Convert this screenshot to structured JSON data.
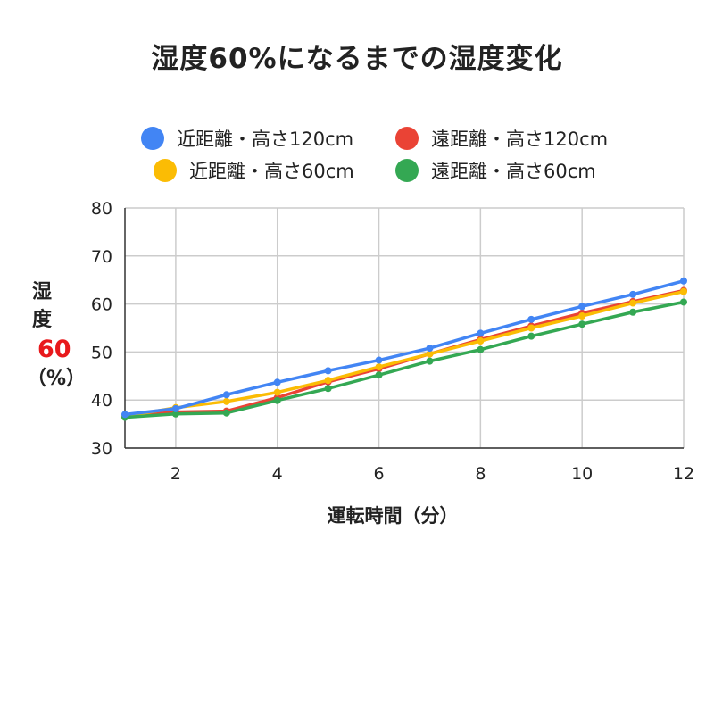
{
  "chart_data": {
    "type": "line",
    "title": "湿度60%になるまでの湿度変化",
    "xlabel": "運転時間（分）",
    "ylabel": "湿度（%）",
    "ylabel_parts": {
      "top": "湿度",
      "highlight": "60",
      "bottom": "（%）"
    },
    "highlight_color": "#e8191c",
    "xlim": [
      1,
      12
    ],
    "ylim": [
      30,
      80
    ],
    "x_ticks": [
      2,
      4,
      6,
      8,
      10,
      12
    ],
    "y_ticks": [
      30,
      40,
      50,
      60,
      70,
      80
    ],
    "grid": true,
    "legend_position": "top",
    "x": [
      1,
      2,
      3,
      4,
      5,
      6,
      7,
      8,
      9,
      10,
      11,
      12
    ],
    "series": [
      {
        "name": "近距離・高さ120cm",
        "color": "#4285f4",
        "values": [
          37.0,
          38.2,
          41.1,
          43.7,
          46.1,
          48.3,
          50.8,
          53.9,
          56.8,
          59.5,
          62.0,
          64.8
        ]
      },
      {
        "name": "遠距離・高さ120cm",
        "color": "#ea4335",
        "values": [
          36.6,
          37.5,
          37.7,
          40.5,
          43.8,
          46.5,
          49.6,
          52.6,
          55.4,
          58.1,
          60.5,
          62.8
        ]
      },
      {
        "name": "近距離・高さ60cm",
        "color": "#fbbc04",
        "values": [
          36.6,
          38.4,
          39.7,
          41.6,
          44.1,
          46.9,
          49.6,
          52.3,
          55.0,
          57.5,
          60.2,
          62.6
        ]
      },
      {
        "name": "遠距離・高さ60cm",
        "color": "#34a853",
        "values": [
          36.4,
          37.1,
          37.3,
          39.9,
          42.4,
          45.2,
          48.1,
          50.5,
          53.3,
          55.8,
          58.3,
          60.4
        ]
      }
    ]
  }
}
